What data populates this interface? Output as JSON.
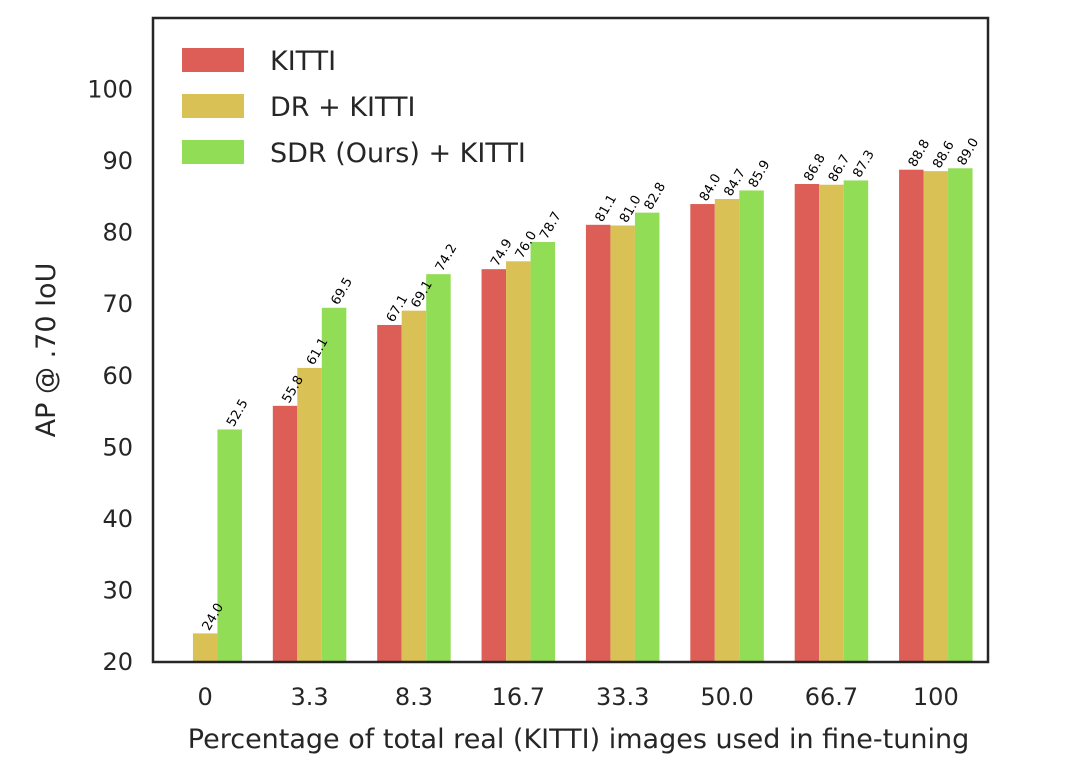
{
  "chart_data": {
    "type": "bar",
    "xlabel": "Percentage of total real (KITTI) images used in fine-tuning",
    "ylabel": "AP @ .70 IoU",
    "categories": [
      "0",
      "3.3",
      "8.3",
      "16.7",
      "33.3",
      "50.0",
      "66.7",
      "100"
    ],
    "ylim": [
      20,
      110
    ],
    "yticks": [
      20,
      30,
      40,
      50,
      60,
      70,
      80,
      90,
      100
    ],
    "grid": false,
    "legend_position": "top-left",
    "series": [
      {
        "name": "KITTI",
        "color": "#dd5e57",
        "values": [
          null,
          55.8,
          67.1,
          74.9,
          81.1,
          84.0,
          86.8,
          88.8
        ],
        "labels": [
          null,
          "55.8",
          "67.1",
          "74.9",
          "81.1",
          "84.0",
          "86.8",
          "88.8"
        ]
      },
      {
        "name": "DR + KITTI",
        "color": "#d9c155",
        "values": [
          24.0,
          61.1,
          69.1,
          76.0,
          81.0,
          84.7,
          86.7,
          88.6
        ],
        "labels": [
          "24.0",
          "61.1",
          "69.1",
          "76.0",
          "81.0",
          "84.7",
          "86.7",
          "88.6"
        ]
      },
      {
        "name": "SDR (Ours) + KITTI",
        "color": "#92dd56",
        "values": [
          52.5,
          69.5,
          74.2,
          78.7,
          82.8,
          85.9,
          87.3,
          89.0
        ],
        "labels": [
          "52.5",
          "69.5",
          "74.2",
          "78.7",
          "82.8",
          "85.9",
          "87.3",
          "89.0"
        ]
      }
    ]
  }
}
